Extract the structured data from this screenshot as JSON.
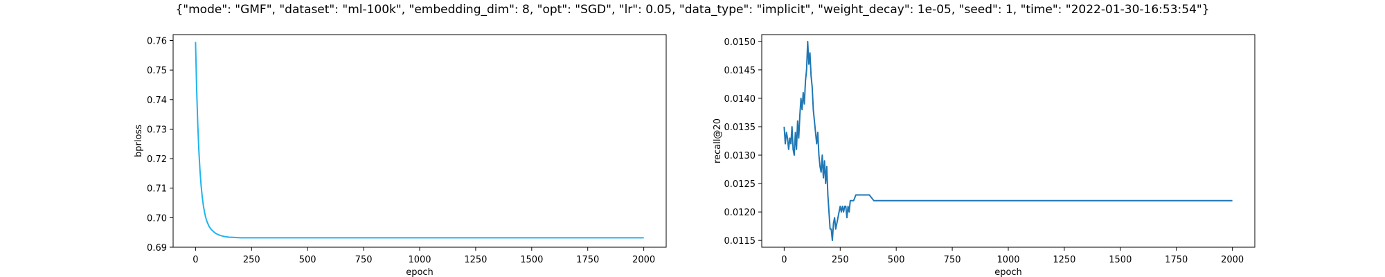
{
  "figure": {
    "suptitle": "{\"mode\": \"GMF\", \"dataset\": \"ml-100k\", \"embedding_dim\": 8, \"opt\": \"SGD\", \"lr\": 0.05, \"data_type\": \"implicit\", \"weight_decay\": 1e-05, \"seed\": 1, \"time\": \"2022-01-30-16:53:54\"}"
  },
  "chart_data": [
    {
      "type": "line",
      "xlabel": "epoch",
      "ylabel": "bprloss",
      "xlim": [
        -100,
        2100
      ],
      "ylim": [
        0.69,
        0.762
      ],
      "xticks": [
        0,
        250,
        500,
        750,
        1000,
        1250,
        1500,
        1750,
        2000
      ],
      "yticks": [
        0.69,
        0.7,
        0.71,
        0.72,
        0.73,
        0.74,
        0.75,
        0.76
      ],
      "ytick_labels": [
        "0.69",
        "0.70",
        "0.71",
        "0.72",
        "0.73",
        "0.74",
        "0.75",
        "0.76"
      ],
      "grid": false,
      "color": "#1fb4ec",
      "series": [
        {
          "x": [
            0,
            5,
            10,
            15,
            20,
            25,
            30,
            35,
            40,
            45,
            50,
            60,
            70,
            80,
            90,
            100,
            110,
            120,
            130,
            150,
            175,
            200,
            300,
            500,
            1000,
            1500,
            2000
          ],
          "values": [
            0.7595,
            0.7435,
            0.7315,
            0.7225,
            0.7158,
            0.7108,
            0.707,
            0.7041,
            0.7019,
            0.7002,
            0.6989,
            0.6971,
            0.696,
            0.6953,
            0.6947,
            0.6943,
            0.694,
            0.6938,
            0.6936,
            0.6934,
            0.6933,
            0.6932,
            0.6932,
            0.6932,
            0.6932,
            0.6932,
            0.6932
          ]
        }
      ]
    },
    {
      "type": "line",
      "xlabel": "epoch",
      "ylabel": "recall@20",
      "xlim": [
        -100,
        2100
      ],
      "ylim": [
        0.01138,
        0.01512
      ],
      "xticks": [
        0,
        250,
        500,
        750,
        1000,
        1250,
        1500,
        1750,
        2000
      ],
      "yticks": [
        0.0115,
        0.012,
        0.0125,
        0.013,
        0.0135,
        0.014,
        0.0145,
        0.015
      ],
      "ytick_labels": [
        "0.0115",
        "0.0120",
        "0.0125",
        "0.0130",
        "0.0135",
        "0.0140",
        "0.0145",
        "0.0150"
      ],
      "grid": false,
      "color": "#1f77b4",
      "series": [
        {
          "x": [
            0,
            5,
            10,
            15,
            20,
            25,
            30,
            35,
            40,
            45,
            50,
            55,
            60,
            65,
            70,
            75,
            80,
            85,
            90,
            95,
            100,
            105,
            110,
            115,
            120,
            125,
            130,
            135,
            140,
            145,
            150,
            155,
            160,
            165,
            170,
            175,
            180,
            185,
            190,
            195,
            200,
            205,
            210,
            215,
            220,
            225,
            230,
            235,
            240,
            245,
            250,
            255,
            260,
            265,
            270,
            275,
            280,
            285,
            290,
            295,
            300,
            305,
            310,
            320,
            340,
            360,
            380,
            400,
            410,
            420,
            500,
            1000,
            1500,
            2000
          ],
          "values": [
            0.0135,
            0.0132,
            0.0134,
            0.0133,
            0.0131,
            0.0133,
            0.0132,
            0.0135,
            0.0131,
            0.013,
            0.0134,
            0.0131,
            0.0136,
            0.0133,
            0.0137,
            0.014,
            0.0138,
            0.0141,
            0.0139,
            0.0143,
            0.0145,
            0.015,
            0.0146,
            0.0148,
            0.0144,
            0.0142,
            0.0138,
            0.0136,
            0.0134,
            0.0132,
            0.0134,
            0.013,
            0.0128,
            0.0127,
            0.013,
            0.0126,
            0.0129,
            0.0125,
            0.0128,
            0.0123,
            0.012,
            0.0117,
            0.0117,
            0.0115,
            0.0118,
            0.0119,
            0.0117,
            0.0118,
            0.0119,
            0.012,
            0.0121,
            0.012,
            0.0121,
            0.012,
            0.0121,
            0.0121,
            0.0119,
            0.0121,
            0.012,
            0.0122,
            0.0122,
            0.0122,
            0.0122,
            0.0123,
            0.0123,
            0.0123,
            0.0123,
            0.0122,
            0.0122,
            0.0122,
            0.0122,
            0.0122,
            0.0122,
            0.0122
          ]
        }
      ]
    }
  ]
}
